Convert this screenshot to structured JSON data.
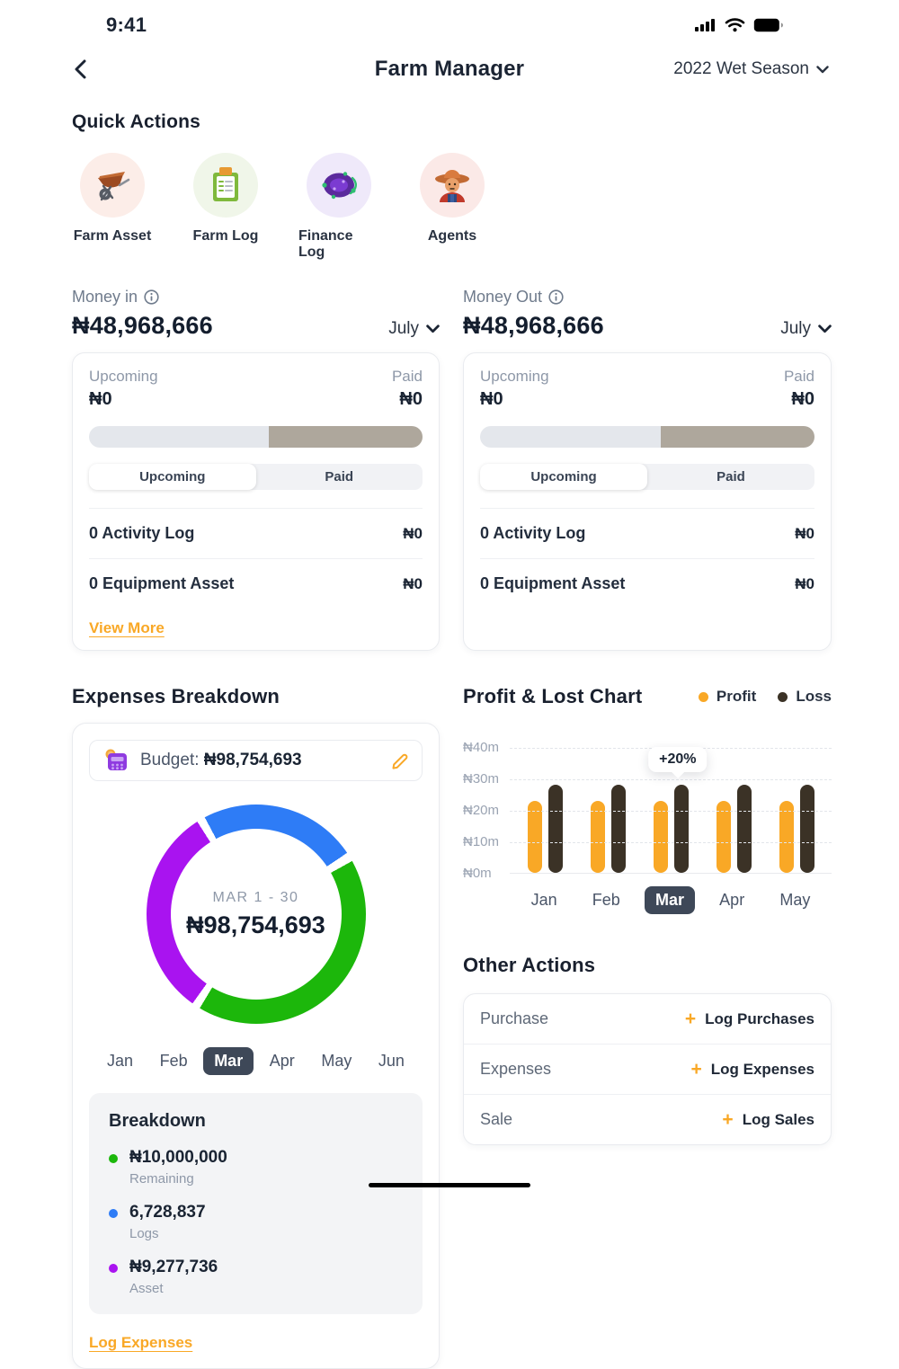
{
  "status_bar": {
    "time": "9:41"
  },
  "header": {
    "title": "Farm Manager",
    "season": "2022 Wet Season"
  },
  "quick_actions": {
    "title": "Quick Actions",
    "items": [
      {
        "label": "Farm Asset",
        "icon": "wheelbarrow-icon",
        "bg": "#FCEDE8"
      },
      {
        "label": "Farm Log",
        "icon": "clipboard-icon",
        "bg": "#F0F6E9"
      },
      {
        "label": "Finance Log",
        "icon": "finance-disc-icon",
        "bg": "#EFE9FA"
      },
      {
        "label": "Agents",
        "icon": "farmer-icon",
        "bg": "#FBE9E7"
      }
    ]
  },
  "money_in": {
    "label": "Money in",
    "amount": "₦48,968,666",
    "month": "July",
    "card": {
      "upcoming_label": "Upcoming",
      "upcoming_value": "₦0",
      "paid_label": "Paid",
      "paid_value": "₦0",
      "progress": {
        "left_pct": 54,
        "left_color": "#E4E7EC",
        "right_color": "#AEA79C"
      },
      "tabs": {
        "options": [
          "Upcoming",
          "Paid"
        ],
        "active": "Upcoming"
      },
      "rows": [
        {
          "label": "0 Activity Log",
          "value": "₦0"
        },
        {
          "label": "0 Equipment Asset",
          "value": "₦0"
        }
      ],
      "view_more": "View More"
    }
  },
  "money_out": {
    "label": "Money Out",
    "amount": "₦48,968,666",
    "month": "July",
    "card": {
      "upcoming_label": "Upcoming",
      "upcoming_value": "₦0",
      "paid_label": "Paid",
      "paid_value": "₦0",
      "progress": {
        "left_pct": 54,
        "left_color": "#E4E7EC",
        "right_color": "#AEA79C"
      },
      "tabs": {
        "options": [
          "Upcoming",
          "Paid"
        ],
        "active": "Upcoming"
      },
      "rows": [
        {
          "label": "0 Activity Log",
          "value": "₦0"
        },
        {
          "label": "0 Equipment Asset",
          "value": "₦0"
        }
      ]
    }
  },
  "expenses_breakdown": {
    "title": "Expenses Breakdown",
    "budget": {
      "label": "Budget:",
      "value": "₦98,754,693"
    },
    "donut": {
      "period": "MAR 1 - 30",
      "total": "₦98,754,693",
      "start_deg": 61,
      "gap_deg": 4.5,
      "segments": [
        {
          "label": "Remaining",
          "color": "#1CB70B",
          "deg": 150
        },
        {
          "label": "Asset",
          "color": "#A913F0",
          "deg": 112
        },
        {
          "label": "Logs",
          "color": "#2E7CF6",
          "deg": 84
        }
      ]
    },
    "months": {
      "options": [
        "Jan",
        "Feb",
        "Mar",
        "Apr",
        "May",
        "Jun"
      ],
      "active": "Mar"
    },
    "breakdown": {
      "title": "Breakdown",
      "items": [
        {
          "value": "₦10,000,000",
          "label": "Remaining",
          "color": "#1CB70B"
        },
        {
          "value": "6,728,837",
          "label": "Logs",
          "color": "#2E7CF6"
        },
        {
          "value": "₦9,277,736",
          "label": "Asset",
          "color": "#A913F0"
        }
      ]
    },
    "link": "Log Expenses"
  },
  "chart_data": {
    "type": "bar",
    "title": "Profit & Lost Chart",
    "categories": [
      "Jan",
      "Feb",
      "Mar",
      "Apr",
      "May"
    ],
    "series": [
      {
        "name": "Profit",
        "color": "#F9A826",
        "values": [
          23,
          23,
          23,
          23,
          23
        ]
      },
      {
        "name": "Loss",
        "color": "#3B3226",
        "values": [
          28,
          28,
          28,
          28,
          28
        ]
      }
    ],
    "ylabel_ticks": [
      "₦40m",
      "₦30m",
      "₦20m",
      "₦10m",
      "₦0m"
    ],
    "ylim": [
      0,
      40
    ],
    "unit": "₦ millions",
    "grid": "dashed-horizontal",
    "legend_position": "top-right",
    "active_category": "Mar",
    "annotation": {
      "category": "Mar",
      "text": "+20%"
    }
  },
  "other_actions": {
    "title": "Other Actions",
    "plus": "+",
    "rows": [
      {
        "label": "Purchase",
        "action": "Log Purchases"
      },
      {
        "label": "Expenses",
        "action": "Log Expenses"
      },
      {
        "label": "Sale",
        "action": "Log Sales"
      }
    ]
  }
}
